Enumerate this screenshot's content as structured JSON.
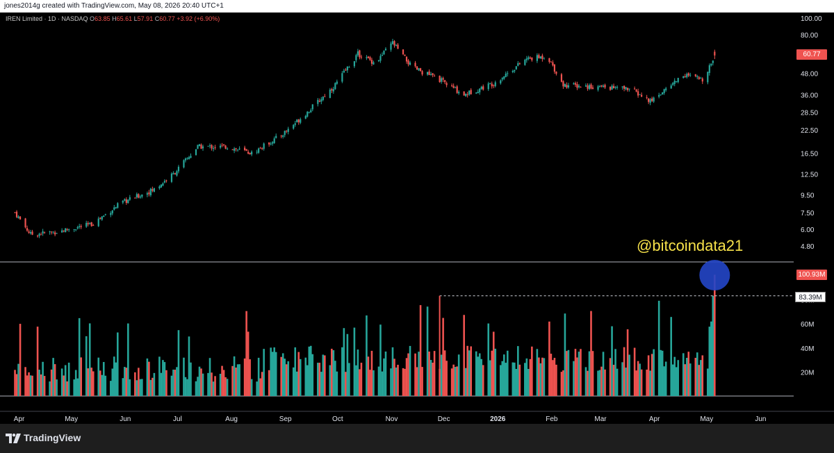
{
  "credit": "jones2014g created with TradingView.com, May 08, 2026 20:40 UTC+1",
  "brand": "TradingView",
  "watermark": "@bitcoindata21",
  "legend": {
    "symbol": "IREN Limited · 1D · NASDAQ",
    "open_label": "O",
    "open": "63.85",
    "high_label": "H",
    "high": "65.61",
    "low_label": "L",
    "low": "57.91",
    "close_label": "C",
    "close": "60.77",
    "change": "+3.92 (+6.90%)"
  },
  "price_tag": "60.77",
  "volume_tag": "100.93M",
  "ref_tag": "83.39M",
  "colors": {
    "up": "#26a69a",
    "down": "#ef5350",
    "watermark": "#f7e24a",
    "highlight": "#2446c8"
  },
  "chart_data": {
    "type": "candlestick",
    "price_scale": "log",
    "price_ticks": [
      "100.00",
      "80.00",
      "60.00",
      "48.00",
      "36.00",
      "28.50",
      "22.50",
      "16.50",
      "12.50",
      "9.50",
      "7.50",
      "6.00",
      "4.80"
    ],
    "volume_ticks": [
      "20M",
      "40M",
      "60M",
      "80M"
    ],
    "x_ticks": [
      "Apr",
      "May",
      "Jun",
      "Jul",
      "Aug",
      "Sep",
      "Oct",
      "Nov",
      "Dec",
      "2026",
      "Feb",
      "Mar",
      "Apr",
      "May",
      "Jun"
    ],
    "price_anchors": [
      {
        "x": "2025-04-01",
        "close": 7.5
      },
      {
        "x": "2025-04-10",
        "close": 5.6
      },
      {
        "x": "2025-04-25",
        "close": 5.8
      },
      {
        "x": "2025-05-15",
        "close": 6.4
      },
      {
        "x": "2025-06-01",
        "close": 8.5
      },
      {
        "x": "2025-06-20",
        "close": 10.2
      },
      {
        "x": "2025-07-01",
        "close": 12.5
      },
      {
        "x": "2025-07-15",
        "close": 18
      },
      {
        "x": "2025-08-01",
        "close": 18
      },
      {
        "x": "2025-08-15",
        "close": 16.5
      },
      {
        "x": "2025-09-01",
        "close": 21
      },
      {
        "x": "2025-09-15",
        "close": 28
      },
      {
        "x": "2025-10-01",
        "close": 40
      },
      {
        "x": "2025-10-15",
        "close": 62
      },
      {
        "x": "2025-10-25",
        "close": 55
      },
      {
        "x": "2025-11-04",
        "close": 72
      },
      {
        "x": "2025-11-15",
        "close": 52
      },
      {
        "x": "2025-12-01",
        "close": 44
      },
      {
        "x": "2025-12-15",
        "close": 36
      },
      {
        "x": "2026-01-01",
        "close": 42
      },
      {
        "x": "2026-01-20",
        "close": 58
      },
      {
        "x": "2026-02-01",
        "close": 60
      },
      {
        "x": "2026-02-10",
        "close": 41
      },
      {
        "x": "2026-03-01",
        "close": 40
      },
      {
        "x": "2026-03-20",
        "close": 39
      },
      {
        "x": "2026-04-01",
        "close": 33
      },
      {
        "x": "2026-04-20",
        "close": 47
      },
      {
        "x": "2026-05-01",
        "close": 44
      },
      {
        "x": "2026-05-08",
        "close": 60.77
      }
    ],
    "volume_max_bar": "100.93M",
    "volume_reference_line": "83.39M"
  }
}
